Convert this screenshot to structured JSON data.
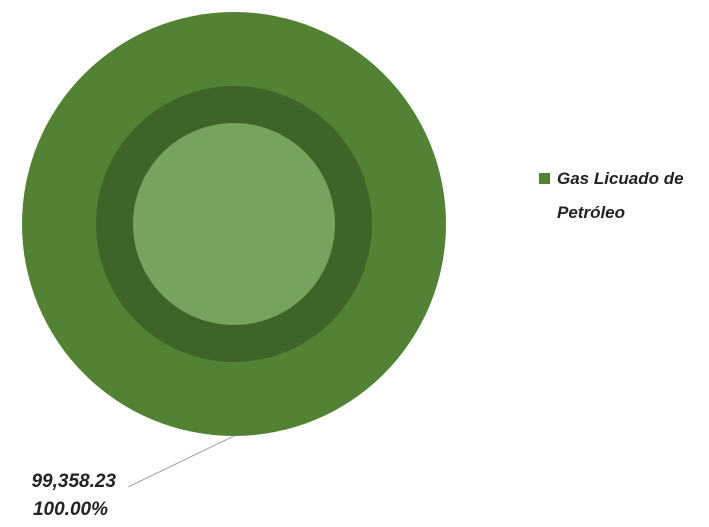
{
  "chart_data": {
    "type": "pie",
    "title": "",
    "categories": [
      "Gas Licuado de Petróleo"
    ],
    "values": [
      99358.23
    ],
    "value_label": "99,358.23",
    "percent_label": "100.00%",
    "legend": {
      "position": "right",
      "entries": [
        {
          "lines": [
            "Gas Licuado de",
            "Petróleo"
          ]
        }
      ]
    },
    "colors": {
      "outer": "#548235",
      "middle": "#3f6428",
      "inner": "#78a35e",
      "leader": "#a6a6a6",
      "label": "#222222"
    }
  }
}
